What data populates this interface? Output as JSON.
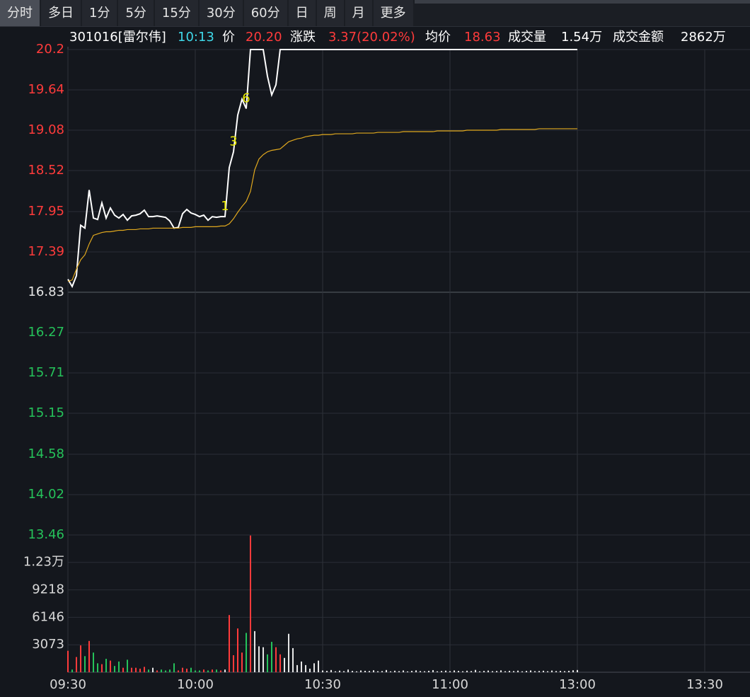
{
  "tabs": [
    {
      "label": "分时",
      "active": true
    },
    {
      "label": "多日",
      "active": false
    },
    {
      "label": "1分",
      "active": false
    },
    {
      "label": "5分",
      "active": false
    },
    {
      "label": "15分",
      "active": false
    },
    {
      "label": "30分",
      "active": false
    },
    {
      "label": "60分",
      "active": false
    },
    {
      "label": "日",
      "active": false
    },
    {
      "label": "周",
      "active": false
    },
    {
      "label": "月",
      "active": false
    },
    {
      "label": "更多",
      "active": false
    }
  ],
  "header": {
    "code": "301016[雷尔伟]",
    "time": "10:13",
    "price_label": "价",
    "price": "20.20",
    "change_label": "涨跌",
    "change": "3.37(20.02%)",
    "avg_label": "均价",
    "avg": "18.63",
    "volume_label": "成交量",
    "volume": "1.54万",
    "amount_label": "成交金额",
    "amount": "2862万"
  },
  "chart_data": [
    {
      "type": "line",
      "x": [
        "09:30",
        "09:31",
        "09:32",
        "09:33",
        "09:34",
        "09:35",
        "09:36",
        "09:37",
        "09:38",
        "09:39",
        "09:40",
        "09:41",
        "09:42",
        "09:43",
        "09:44",
        "09:45",
        "09:46",
        "09:47",
        "09:48",
        "09:49",
        "09:50",
        "09:51",
        "09:52",
        "09:53",
        "09:54",
        "09:55",
        "09:56",
        "09:57",
        "09:58",
        "09:59",
        "10:00",
        "10:01",
        "10:02",
        "10:03",
        "10:04",
        "10:05",
        "10:06",
        "10:07",
        "10:08",
        "10:09",
        "10:10",
        "10:11",
        "10:12",
        "10:13",
        "10:14",
        "10:15",
        "10:16",
        "10:17",
        "10:18",
        "10:19",
        "10:20",
        "10:21",
        "10:22",
        "10:23",
        "10:24",
        "10:25",
        "10:26",
        "10:27",
        "10:28",
        "10:29",
        "10:30",
        "10:31",
        "10:32",
        "10:33",
        "10:34",
        "10:35",
        "10:36",
        "10:37",
        "10:38",
        "10:39",
        "10:40",
        "10:41",
        "10:42",
        "10:43",
        "10:44",
        "10:45",
        "10:46",
        "10:47",
        "10:48",
        "10:49",
        "10:50",
        "10:51",
        "10:52",
        "10:53",
        "10:54",
        "10:55",
        "10:56",
        "10:57",
        "10:58",
        "10:59",
        "11:00",
        "11:01",
        "11:02",
        "11:03",
        "11:04",
        "11:05",
        "11:06",
        "11:07",
        "11:08",
        "11:09",
        "11:10",
        "11:11",
        "11:12",
        "11:13",
        "11:14",
        "11:15",
        "11:16",
        "11:17",
        "11:18",
        "11:19",
        "11:20",
        "11:21",
        "11:22",
        "11:23",
        "11:24",
        "11:25",
        "11:26",
        "11:27",
        "11:28",
        "11:29",
        "11:30"
      ],
      "series": [
        {
          "color": "#ffffff",
          "values": [
            17.01,
            16.91,
            17.06,
            17.76,
            17.72,
            18.25,
            17.86,
            17.84,
            18.07,
            17.86,
            18.0,
            17.9,
            17.86,
            17.91,
            17.83,
            17.89,
            17.9,
            17.92,
            17.97,
            17.88,
            17.88,
            17.89,
            17.88,
            17.87,
            17.82,
            17.72,
            17.73,
            17.92,
            17.98,
            17.93,
            17.91,
            17.88,
            17.9,
            17.83,
            17.88,
            17.87,
            17.88,
            17.88,
            18.56,
            18.78,
            19.29,
            19.51,
            19.38,
            20.2,
            20.2,
            20.2,
            20.2,
            19.83,
            19.57,
            19.71,
            20.2,
            20.2,
            20.2,
            20.2,
            20.2,
            20.2,
            20.2,
            20.2,
            20.2,
            20.2,
            20.2,
            20.2,
            20.2,
            20.2,
            20.2,
            20.2,
            20.2,
            20.2,
            20.2,
            20.2,
            20.2,
            20.2,
            20.2,
            20.2,
            20.2,
            20.2,
            20.2,
            20.2,
            20.2,
            20.2,
            20.2,
            20.2,
            20.2,
            20.2,
            20.2,
            20.2,
            20.2,
            20.2,
            20.2,
            20.2,
            20.2,
            20.2,
            20.2,
            20.2,
            20.2,
            20.2,
            20.2,
            20.2,
            20.2,
            20.2,
            20.2,
            20.2,
            20.2,
            20.2,
            20.2,
            20.2,
            20.2,
            20.2,
            20.2,
            20.2,
            20.2,
            20.2,
            20.2,
            20.2,
            20.2,
            20.2,
            20.2,
            20.2,
            20.2,
            20.2,
            20.2
          ]
        },
        {
          "color": "#e0a81e",
          "values": [
            16.98,
            17.0,
            17.15,
            17.28,
            17.35,
            17.5,
            17.62,
            17.64,
            17.66,
            17.67,
            17.67,
            17.68,
            17.69,
            17.69,
            17.7,
            17.7,
            17.7,
            17.71,
            17.71,
            17.71,
            17.72,
            17.72,
            17.72,
            17.72,
            17.72,
            17.72,
            17.72,
            17.73,
            17.73,
            17.73,
            17.74,
            17.74,
            17.74,
            17.74,
            17.74,
            17.74,
            17.75,
            17.75,
            17.78,
            17.85,
            17.94,
            18.02,
            18.09,
            18.23,
            18.53,
            18.68,
            18.74,
            18.78,
            18.8,
            18.81,
            18.82,
            18.87,
            18.92,
            18.94,
            18.96,
            18.97,
            18.99,
            19.0,
            19.01,
            19.01,
            19.02,
            19.02,
            19.02,
            19.03,
            19.03,
            19.03,
            19.03,
            19.03,
            19.04,
            19.04,
            19.04,
            19.04,
            19.04,
            19.05,
            19.05,
            19.05,
            19.05,
            19.05,
            19.05,
            19.06,
            19.06,
            19.06,
            19.06,
            19.06,
            19.06,
            19.06,
            19.06,
            19.07,
            19.07,
            19.07,
            19.07,
            19.07,
            19.07,
            19.07,
            19.08,
            19.08,
            19.08,
            19.08,
            19.08,
            19.08,
            19.08,
            19.08,
            19.09,
            19.09,
            19.09,
            19.09,
            19.09,
            19.09,
            19.09,
            19.09,
            19.09,
            19.1,
            19.1,
            19.1,
            19.1,
            19.1,
            19.1,
            19.1,
            19.1,
            19.1,
            19.1
          ]
        }
      ],
      "ylim": [
        13.46,
        20.2
      ],
      "yticks": [
        20.2,
        19.64,
        19.08,
        18.52,
        17.95,
        17.39,
        16.83,
        16.27,
        15.71,
        15.15,
        14.58,
        14.02,
        13.46
      ],
      "xticks": [
        "09:30",
        "10:00",
        "10:30",
        "11:00",
        "13:00",
        "13:30"
      ],
      "annotations": [
        {
          "text": "1",
          "x": "10:07"
        },
        {
          "text": "3",
          "x": "10:09"
        },
        {
          "text": "6",
          "x": "10:12"
        }
      ],
      "annotation_color": "#e8e800",
      "up_color": "#ff3b3b",
      "down_color": "#25c25a",
      "flat_color": "#e6e6e6",
      "grid": true
    },
    {
      "type": "bar",
      "values": [
        2400,
        300,
        1700,
        3000,
        1800,
        3500,
        2200,
        1000,
        900,
        1500,
        1300,
        700,
        1200,
        500,
        1400,
        500,
        500,
        400,
        600,
        300,
        500,
        200,
        300,
        200,
        300,
        1000,
        200,
        500,
        400,
        500,
        200,
        200,
        300,
        200,
        300,
        300,
        200,
        300,
        6400,
        1900,
        4900,
        2200,
        4400,
        15300,
        4600,
        2900,
        2800,
        2000,
        3400,
        2800,
        2000,
        1600,
        4300,
        2700,
        800,
        1200,
        800,
        400,
        1000,
        1300,
        200,
        150,
        250,
        100,
        180,
        120,
        300,
        150,
        100,
        200,
        160,
        140,
        220,
        110,
        130,
        250,
        100,
        170,
        120,
        200,
        90,
        150,
        210,
        130,
        110,
        160,
        240,
        100,
        140,
        180,
        120,
        200,
        150,
        110,
        170,
        130,
        260,
        100,
        150,
        190,
        120,
        140,
        210,
        110,
        160,
        130,
        180,
        100,
        150,
        200,
        120,
        140,
        170,
        110,
        190,
        130,
        150,
        120,
        160,
        220,
        250
      ],
      "ylim": [
        0,
        15364
      ],
      "yticks": [
        3073,
        6146,
        9218,
        {
          "value": 12300,
          "label": "1.23万"
        }
      ],
      "tick_color": "#d8d8d8"
    }
  ]
}
